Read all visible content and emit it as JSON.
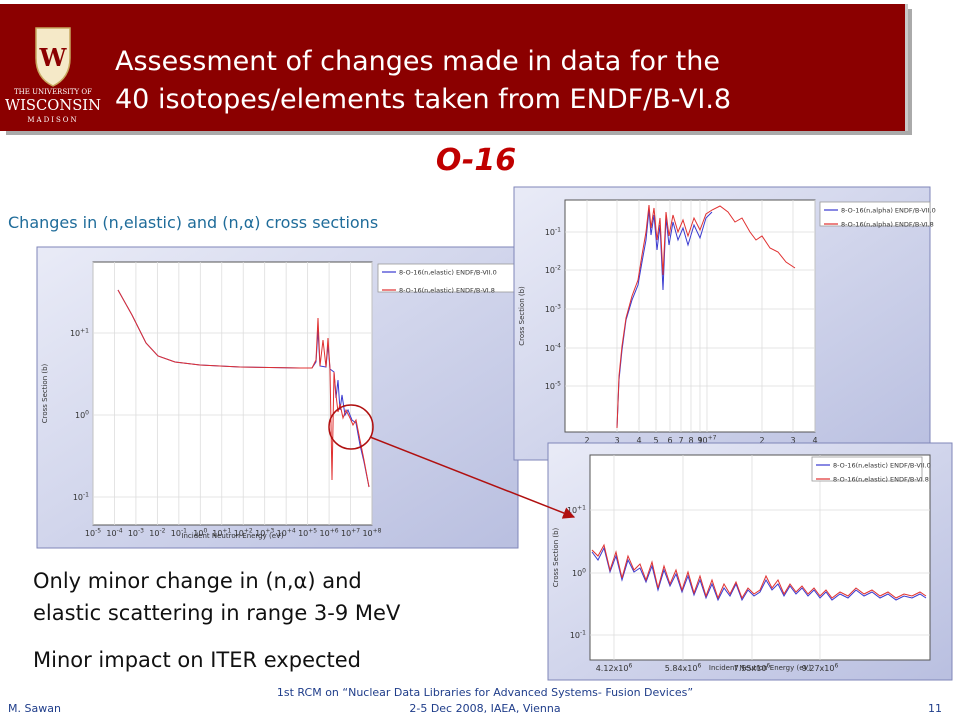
{
  "header": {
    "title_lines": [
      "Assessment of changes made in data for the",
      "40 isotopes/elements taken from ENDF/B-VI.8"
    ],
    "logo": {
      "crest": "W",
      "line1": "THE UNIVERSITY OF",
      "line2": "WISCONSIN",
      "line3": "MADISON"
    }
  },
  "heading": "O-16",
  "subtitle": "Changes in (n,elastic) and (n,α) cross sections",
  "plots": [
    {
      "legend": [
        "8-O-16(n,elastic) ENDF/B-VII.0",
        "8-O-16(n,elastic) ENDF/B-VI.8"
      ],
      "ylabel": "Cross Section (b)",
      "xlabel": "Incident Neutron Energy (eV)",
      "yticks": [
        {
          "base": "10",
          "exp": "+1"
        },
        {
          "base": "10",
          "exp": "0"
        },
        {
          "base": "10",
          "exp": "-1"
        }
      ],
      "xticks": [
        {
          "base": "10",
          "exp": "-5"
        },
        {
          "base": "10",
          "exp": "-4"
        },
        {
          "base": "10",
          "exp": "-3"
        },
        {
          "base": "10",
          "exp": "-2"
        },
        {
          "base": "10",
          "exp": "-1"
        },
        {
          "base": "10",
          "exp": "0"
        },
        {
          "base": "10",
          "exp": "+1"
        },
        {
          "base": "10",
          "exp": "+2"
        },
        {
          "base": "10",
          "exp": "+3"
        },
        {
          "base": "10",
          "exp": "+4"
        },
        {
          "base": "10",
          "exp": "+5"
        },
        {
          "base": "10",
          "exp": "+6"
        },
        {
          "base": "10",
          "exp": "+7"
        },
        {
          "base": "10",
          "exp": "+8"
        }
      ]
    },
    {
      "legend": [
        "8-O-16(n,alpha) ENDF/B-VII.0",
        "8-O-16(n,alpha) ENDF/B-VI.8"
      ],
      "ylabel": "Cross Section (b)",
      "yticks": [
        {
          "base": "10",
          "exp": "-1"
        },
        {
          "base": "10",
          "exp": "-2"
        },
        {
          "base": "10",
          "exp": "-3"
        },
        {
          "base": "10",
          "exp": "-4"
        },
        {
          "base": "10",
          "exp": "-5"
        }
      ],
      "xticks": [
        "2",
        "3",
        "4",
        "5",
        "6",
        "7",
        "8",
        "9",
        {
          "base": "10",
          "exp": "+7"
        },
        "2",
        "3",
        "4"
      ]
    },
    {
      "legend": [
        "8-O-16(n,elastic) ENDF/B-VII.0",
        "8-O-16(n,elastic) ENDF/B-VI.8"
      ],
      "ylabel": "Cross Section (b)",
      "xlabel": "Incident Neutron Energy (eV)",
      "yticks": [
        {
          "base": "10",
          "exp": "+1"
        },
        {
          "base": "10",
          "exp": "0"
        },
        {
          "base": "10",
          "exp": "-1"
        }
      ],
      "xticks": [
        {
          "base": "4.12x10",
          "exp": "6"
        },
        {
          "base": "5.84x10",
          "exp": "6"
        },
        {
          "base": "7.55x10",
          "exp": "6"
        },
        {
          "base": "9.27x10",
          "exp": "6"
        }
      ]
    }
  ],
  "bullets": [
    [
      "Only minor change in (n,α) and",
      "elastic scattering in range 3-9 MeV"
    ],
    [
      "Minor impact on ITER expected"
    ]
  ],
  "footer": {
    "author": "M. Sawan",
    "event_lines": [
      "1st RCM on “Nuclear Data Libraries for Advanced Systems- Fusion Devices”",
      "2-5 Dec 2008, IAEA, Vienna"
    ],
    "page": "11"
  }
}
